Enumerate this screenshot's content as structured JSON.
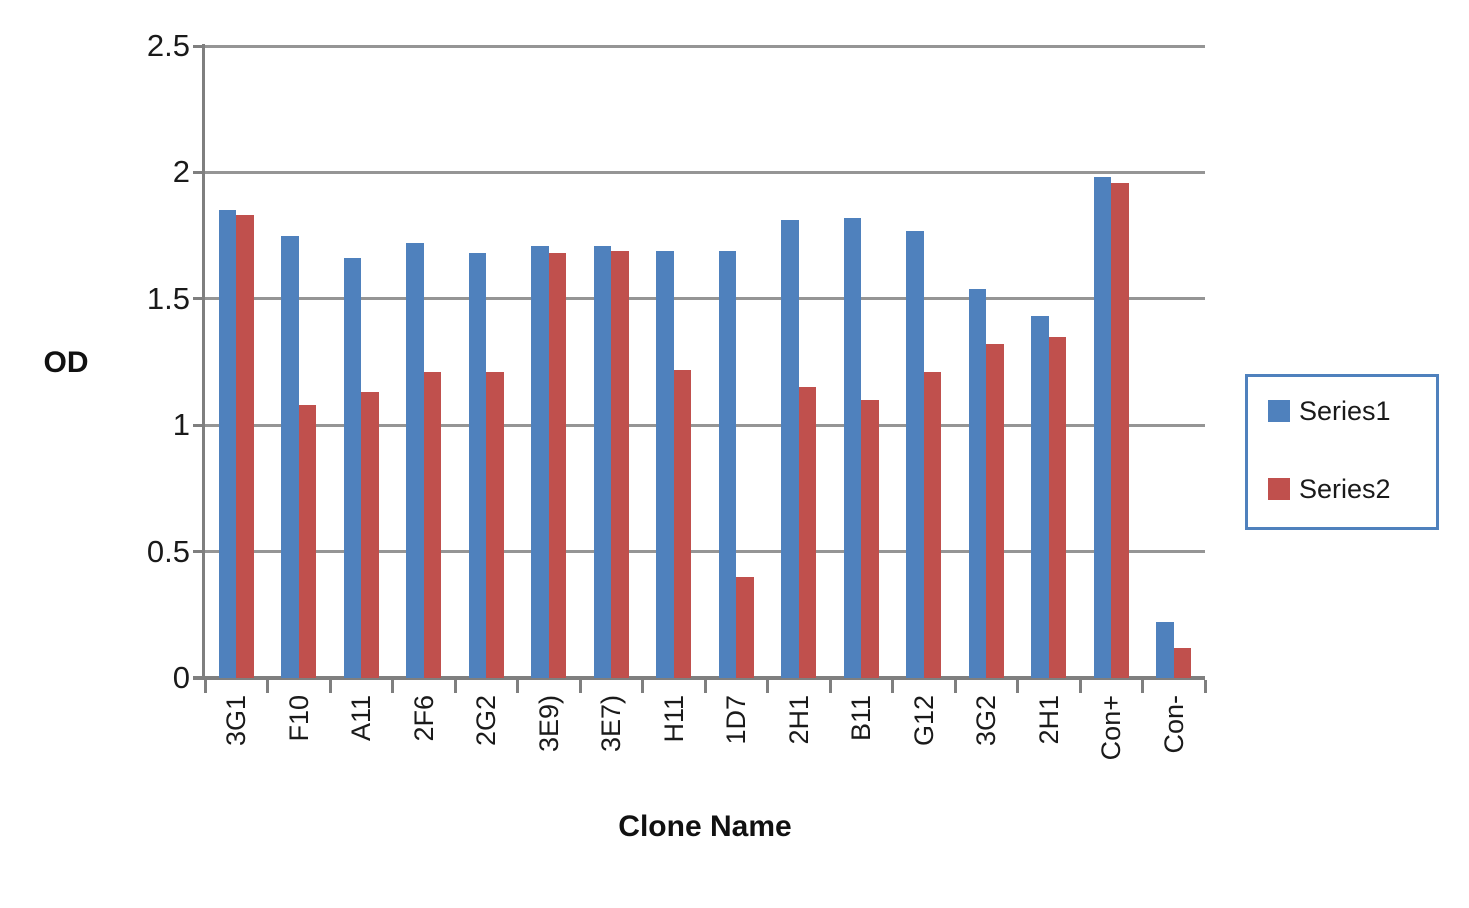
{
  "chart_data": {
    "type": "bar",
    "title": "",
    "xlabel": "Clone Name",
    "ylabel": "OD",
    "categories": [
      "3G1",
      "F10",
      "A11",
      "2F6",
      "2G2",
      "3E9)",
      "3E7)",
      "H11",
      "1D7",
      "2H1",
      "B11",
      "G12",
      "3G2",
      "2H1",
      "Con+",
      "Con-"
    ],
    "series": [
      {
        "name": "Series1",
        "color": "#4F81BD",
        "values": [
          1.85,
          1.75,
          1.66,
          1.72,
          1.68,
          1.71,
          1.71,
          1.69,
          1.69,
          1.81,
          1.82,
          1.77,
          1.54,
          1.43,
          1.98,
          0.22
        ]
      },
      {
        "name": "Series2",
        "color": "#C0504D",
        "values": [
          1.83,
          1.08,
          1.13,
          1.21,
          1.21,
          1.68,
          1.69,
          1.22,
          0.4,
          1.15,
          1.1,
          1.21,
          1.32,
          1.35,
          1.96,
          0.12
        ]
      }
    ],
    "ylim": [
      0,
      2.5
    ],
    "yticks": [
      0,
      0.5,
      1,
      1.5,
      2,
      2.5
    ],
    "ytick_labels": [
      "0",
      "0.5",
      "1",
      "1.5",
      "2",
      "2.5"
    ],
    "grid": "horizontal",
    "legend_position": "right",
    "colors": {
      "grid": "#959595",
      "axis": "#7f7f7f",
      "text": "#1a1a1a",
      "legend_border": "#4F81BD",
      "background": "#ffffff"
    }
  }
}
